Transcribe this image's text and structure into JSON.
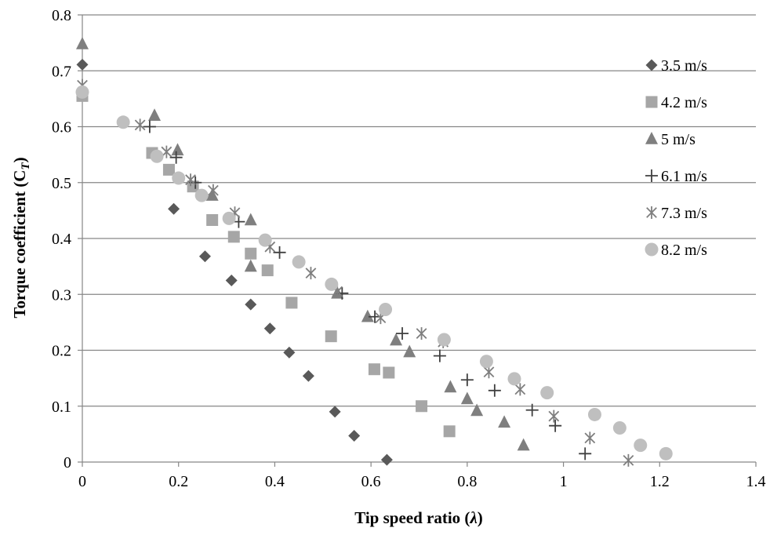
{
  "chart_data": {
    "type": "scatter",
    "title": "",
    "xlabel": "Tip speed ratio (",
    "xlabel_symbol": "λ",
    "xlabel_close": ")",
    "ylabel": "Torque coefficient (C",
    "ylabel_sub": "T",
    "ylabel_close": ")",
    "xlim": [
      0,
      1.4
    ],
    "ylim": [
      0,
      0.8
    ],
    "xticks": [
      "0",
      "0.2",
      "0.4",
      "0.6",
      "0.8",
      "1",
      "1.2",
      "1.4"
    ],
    "yticks": [
      "0",
      "0.1",
      "0.2",
      "0.3",
      "0.4",
      "0.5",
      "0.6",
      "0.7",
      "0.8"
    ],
    "grid": "horizontal",
    "legend_position": "right",
    "series": [
      {
        "name": "3.5 m/s",
        "marker": "diamond",
        "color": "#595959",
        "points": [
          [
            0.0,
            0.711
          ],
          [
            0.19,
            0.453
          ],
          [
            0.255,
            0.368
          ],
          [
            0.31,
            0.325
          ],
          [
            0.35,
            0.282
          ],
          [
            0.39,
            0.239
          ],
          [
            0.43,
            0.196
          ],
          [
            0.47,
            0.154
          ],
          [
            0.525,
            0.09
          ],
          [
            0.565,
            0.047
          ],
          [
            0.633,
            0.004
          ]
        ]
      },
      {
        "name": "4.2 m/s",
        "marker": "square",
        "color": "#a6a6a6",
        "points": [
          [
            0.0,
            0.655
          ],
          [
            0.145,
            0.553
          ],
          [
            0.18,
            0.523
          ],
          [
            0.23,
            0.493
          ],
          [
            0.27,
            0.433
          ],
          [
            0.315,
            0.403
          ],
          [
            0.35,
            0.373
          ],
          [
            0.385,
            0.343
          ],
          [
            0.435,
            0.285
          ],
          [
            0.517,
            0.225
          ],
          [
            0.607,
            0.166
          ],
          [
            0.637,
            0.16
          ],
          [
            0.705,
            0.1
          ],
          [
            0.763,
            0.055
          ]
        ]
      },
      {
        "name": "5 m/s",
        "marker": "triangle",
        "color": "#7f7f7f",
        "points": [
          [
            0.0,
            0.748
          ],
          [
            0.15,
            0.62
          ],
          [
            0.198,
            0.558
          ],
          [
            0.27,
            0.477
          ],
          [
            0.35,
            0.433
          ],
          [
            0.35,
            0.35
          ],
          [
            0.53,
            0.302
          ],
          [
            0.593,
            0.26
          ],
          [
            0.652,
            0.218
          ],
          [
            0.68,
            0.197
          ],
          [
            0.765,
            0.134
          ],
          [
            0.8,
            0.113
          ],
          [
            0.82,
            0.092
          ],
          [
            0.877,
            0.071
          ],
          [
            0.917,
            0.03
          ]
        ]
      },
      {
        "name": "6.1 m/s",
        "marker": "plus",
        "color": "#404040",
        "points": [
          [
            0.14,
            0.6
          ],
          [
            0.195,
            0.545
          ],
          [
            0.235,
            0.5
          ],
          [
            0.325,
            0.43
          ],
          [
            0.41,
            0.375
          ],
          [
            0.54,
            0.302
          ],
          [
            0.608,
            0.26
          ],
          [
            0.665,
            0.23
          ],
          [
            0.743,
            0.19
          ],
          [
            0.8,
            0.147
          ],
          [
            0.857,
            0.128
          ],
          [
            0.935,
            0.093
          ],
          [
            0.983,
            0.065
          ],
          [
            1.045,
            0.015
          ]
        ]
      },
      {
        "name": "7.3 m/s",
        "marker": "asterisk",
        "color": "#7f7f7f",
        "points": [
          [
            0.0,
            0.674
          ],
          [
            0.12,
            0.603
          ],
          [
            0.175,
            0.555
          ],
          [
            0.225,
            0.505
          ],
          [
            0.272,
            0.486
          ],
          [
            0.317,
            0.446
          ],
          [
            0.39,
            0.385
          ],
          [
            0.475,
            0.338
          ],
          [
            0.53,
            0.305
          ],
          [
            0.62,
            0.258
          ],
          [
            0.705,
            0.23
          ],
          [
            0.75,
            0.215
          ],
          [
            0.845,
            0.161
          ],
          [
            0.91,
            0.13
          ],
          [
            0.98,
            0.082
          ],
          [
            1.055,
            0.043
          ],
          [
            1.135,
            0.003
          ]
        ]
      },
      {
        "name": "8.2 m/s",
        "marker": "circle",
        "color": "#bfbfbf",
        "points": [
          [
            0.0,
            0.662
          ],
          [
            0.085,
            0.608
          ],
          [
            0.155,
            0.547
          ],
          [
            0.2,
            0.508
          ],
          [
            0.248,
            0.477
          ],
          [
            0.305,
            0.436
          ],
          [
            0.38,
            0.397
          ],
          [
            0.45,
            0.358
          ],
          [
            0.518,
            0.318
          ],
          [
            0.63,
            0.273
          ],
          [
            0.752,
            0.219
          ],
          [
            0.84,
            0.18
          ],
          [
            0.898,
            0.149
          ],
          [
            0.966,
            0.124
          ],
          [
            1.065,
            0.085
          ],
          [
            1.117,
            0.061
          ],
          [
            1.16,
            0.03
          ],
          [
            1.213,
            0.015
          ]
        ]
      }
    ]
  }
}
